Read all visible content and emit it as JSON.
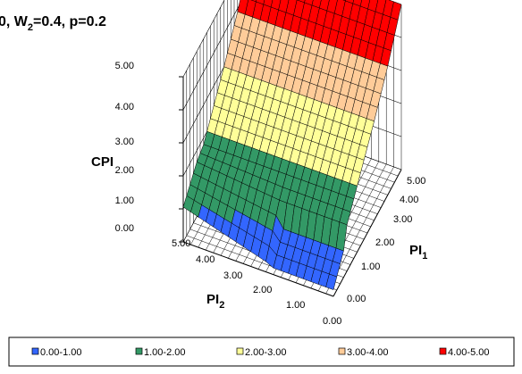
{
  "chart_data": {
    "type": "surface",
    "title": "0, W2=0.4, p=0.2",
    "title_parts": {
      "lead": "0, W",
      "sub1": "2",
      "mid": "=0.4, p=0.2"
    },
    "zlabel": "CPI",
    "xlabel": {
      "base": "PI",
      "sub": "1"
    },
    "ylabel": {
      "base": "PI",
      "sub": "2"
    },
    "z_ticks": [
      "0.00",
      "1.00",
      "2.00",
      "3.00",
      "4.00",
      "5.00"
    ],
    "x_ticks": [
      "0.00",
      "1.00",
      "2.00",
      "3.00",
      "4.00",
      "5.00"
    ],
    "y_ticks": [
      "0.00",
      "1.00",
      "2.00",
      "3.00",
      "4.00",
      "5.00"
    ],
    "zlim": [
      0,
      5
    ],
    "legend": [
      {
        "label": "0.00-1.00",
        "color": "#3366ff"
      },
      {
        "label": "1.00-2.00",
        "color": "#339966"
      },
      {
        "label": "2.00-3.00",
        "color": "#ffff99"
      },
      {
        "label": "3.00-4.00",
        "color": "#ffcc99"
      },
      {
        "label": "4.00-5.00",
        "color": "#ff0000"
      }
    ]
  }
}
